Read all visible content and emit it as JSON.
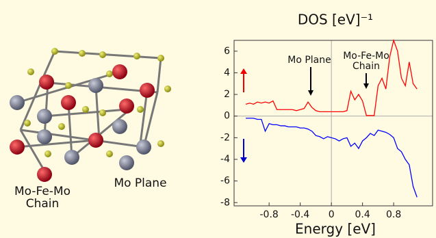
{
  "illustration": {
    "chain_label": [
      "Mo-Fe-Mo",
      "Chain"
    ],
    "plane_label": "Mo Plane"
  },
  "chart_data": {
    "type": "line",
    "title": "DOS [eV]⁻¹",
    "x_label": "Energy [eV]",
    "x": [
      -1.1,
      -1.05,
      -1.0,
      -0.95,
      -0.9,
      -0.85,
      -0.8,
      -0.75,
      -0.7,
      -0.65,
      -0.6,
      -0.55,
      -0.5,
      -0.45,
      -0.4,
      -0.35,
      -0.3,
      -0.25,
      -0.2,
      -0.15,
      -0.1,
      -0.05,
      0,
      0.05,
      0.1,
      0.15,
      0.2,
      0.25,
      0.3,
      0.35,
      0.4,
      0.45,
      0.5,
      0.55,
      0.6,
      0.65,
      0.7,
      0.75,
      0.8,
      0.85,
      0.9,
      0.95,
      1.0,
      1.05,
      1.1
    ],
    "series": [
      {
        "color": "#ff0000",
        "values": [
          1.1,
          1.2,
          1.1,
          1.3,
          1.2,
          1.3,
          1.2,
          1.4,
          0.6,
          0.6,
          0.6,
          0.6,
          0.6,
          0.5,
          0.6,
          0.7,
          1.3,
          0.8,
          0.5,
          0.4,
          0.4,
          0.4,
          0.4,
          0.4,
          0.4,
          0.4,
          0.5,
          2.3,
          1.5,
          2.0,
          1.4,
          0.05,
          0.05,
          0.05,
          2.8,
          3.5,
          2.5,
          5.5,
          7,
          6,
          3.5,
          2.8,
          5,
          3,
          2.5
        ]
      },
      {
        "color": "#0000ff",
        "values": [
          -0.2,
          -0.2,
          -0.2,
          -0.3,
          -0.3,
          -1.4,
          -0.7,
          -0.8,
          -0.8,
          -0.9,
          -0.9,
          -1.0,
          -1.0,
          -1.0,
          -1.1,
          -1.1,
          -1.2,
          -1.4,
          -1.8,
          -1.9,
          -2.1,
          -1.9,
          -2.0,
          -2.1,
          -2.3,
          -2.1,
          -2.0,
          -2.8,
          -2.5,
          -3.0,
          -2.3,
          -2.0,
          -1.6,
          -1.8,
          -1.3,
          -1.4,
          -1.5,
          -1.7,
          -2.0,
          -3.0,
          -3.3,
          -4.0,
          -4.5,
          -6.5,
          -7.5
        ]
      }
    ],
    "xlim": [
      -1.25,
      1.3
    ],
    "ylim": [
      -8.3,
      7
    ],
    "xticks": [
      -0.8,
      -0.4,
      0,
      0.4,
      0.8
    ],
    "yticks": [
      -8,
      -6,
      -4,
      -2,
      0,
      2,
      4,
      6
    ],
    "annotations": [
      {
        "text": [
          "Mo Plane"
        ]
      },
      {
        "text": [
          "Mo-Fe-Mo",
          "Chain"
        ]
      }
    ]
  }
}
